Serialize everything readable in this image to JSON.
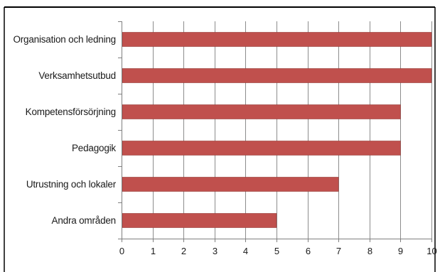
{
  "chart_data": {
    "type": "bar",
    "orientation": "horizontal",
    "categories": [
      "Organisation och ledning",
      "Verksamhetsutbud",
      "Kompetensförsörjning",
      "Pedagogik",
      "Utrustning och lokaler",
      "Andra områden"
    ],
    "values": [
      10,
      10,
      9,
      9,
      7,
      5
    ],
    "xlim": [
      0,
      10
    ],
    "x_ticks": [
      "0",
      "1",
      "2",
      "3",
      "4",
      "5",
      "6",
      "7",
      "8",
      "9",
      "10"
    ],
    "title": "",
    "xlabel": "",
    "ylabel": "",
    "grid": "vertical",
    "legend": "none",
    "colors": {
      "bar_fill": "#c0504d",
      "bar_stroke": "#943734",
      "gridline": "#8c8c8c",
      "axis": "#7f7f7f",
      "frame": "#000000",
      "text": "#1a1a1a"
    }
  }
}
